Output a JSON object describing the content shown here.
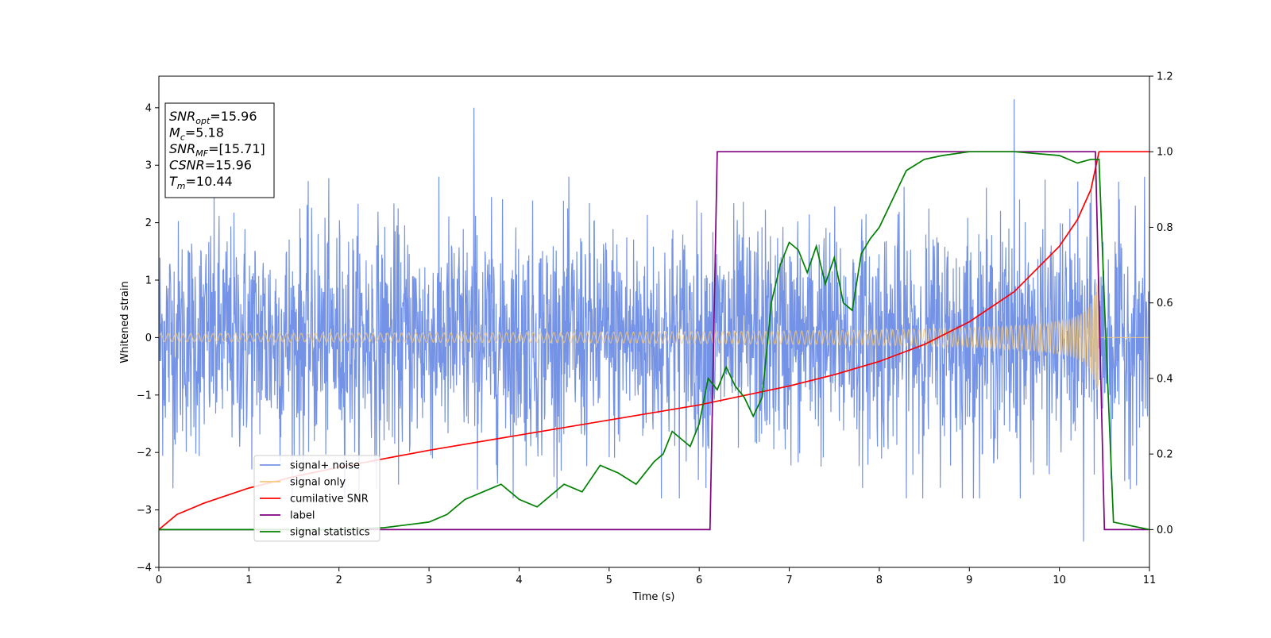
{
  "chart_data": {
    "type": "line",
    "title": "",
    "xlabel": "Time (s)",
    "ylabel": "Whitened strain",
    "xlim": [
      0,
      11
    ],
    "ylim": [
      -4,
      4.55
    ],
    "y2lim": [
      -0.1,
      1.2
    ],
    "x_ticks": [
      "0",
      "1",
      "2",
      "3",
      "4",
      "5",
      "6",
      "7",
      "8",
      "9",
      "10",
      "11"
    ],
    "y_ticks": [
      "−4",
      "−3",
      "−2",
      "−1",
      "0",
      "1",
      "2",
      "3",
      "4"
    ],
    "y2_ticks": [
      "0.0",
      "0.2",
      "0.4",
      "0.6",
      "0.8",
      "1.0",
      "1.2"
    ],
    "grid": false,
    "legend_position": "lower-left",
    "info_box": {
      "lines": [
        {
          "base": "SNR",
          "sub": "opt",
          "value": "=15.96"
        },
        {
          "base": "M",
          "sub": "c",
          "value": "=5.18"
        },
        {
          "base": "SNR",
          "sub": "MF",
          "value": "=[15.71]"
        },
        {
          "base": "CSNR",
          "sub": "",
          "value": "=15.96"
        },
        {
          "base": "T",
          "sub": "m",
          "value": "=10.44"
        }
      ]
    },
    "series": [
      {
        "name": "signal+ noise",
        "color": "#7593e6",
        "axis": "left",
        "kind": "noise",
        "amplitude_sigma": 1.0,
        "peaks": [
          4.0,
          4.15,
          -3.55
        ]
      },
      {
        "name": "signal only",
        "color": "#f5c97a",
        "axis": "left",
        "kind": "chirp",
        "merger_time": 10.44,
        "amplitude_start": 0.07,
        "amplitude_peak": 0.95
      },
      {
        "name": "cumilative SNR",
        "color": "#ff0000",
        "axis": "right",
        "x": [
          0,
          0.2,
          0.5,
          1,
          1.5,
          2,
          3,
          4,
          5,
          6,
          7,
          7.5,
          8,
          8.5,
          9,
          9.5,
          10,
          10.2,
          10.35,
          10.44,
          11
        ],
        "y": [
          0.0,
          0.04,
          0.07,
          0.11,
          0.14,
          0.165,
          0.21,
          0.25,
          0.29,
          0.33,
          0.38,
          0.41,
          0.445,
          0.49,
          0.55,
          0.63,
          0.75,
          0.82,
          0.9,
          1.0,
          1.0
        ]
      },
      {
        "name": "label",
        "color": "#800080",
        "axis": "right",
        "x": [
          0,
          6.12,
          6.2,
          10.4,
          10.5,
          11
        ],
        "y": [
          0,
          0,
          1,
          1,
          0,
          0
        ]
      },
      {
        "name": "signal statistics",
        "color": "#008000",
        "axis": "right",
        "x": [
          0,
          2.0,
          2.5,
          3.0,
          3.2,
          3.4,
          3.6,
          3.8,
          4.0,
          4.2,
          4.5,
          4.7,
          4.9,
          5.1,
          5.3,
          5.5,
          5.6,
          5.7,
          5.8,
          5.9,
          6.0,
          6.1,
          6.2,
          6.3,
          6.4,
          6.5,
          6.6,
          6.7,
          6.8,
          6.9,
          7.0,
          7.1,
          7.2,
          7.3,
          7.4,
          7.5,
          7.6,
          7.7,
          7.8,
          7.9,
          8.0,
          8.1,
          8.2,
          8.3,
          8.5,
          8.7,
          9.0,
          9.5,
          10.0,
          10.2,
          10.35,
          10.44,
          10.5,
          10.6,
          11
        ],
        "y": [
          0,
          0,
          0.005,
          0.02,
          0.04,
          0.08,
          0.1,
          0.12,
          0.08,
          0.06,
          0.12,
          0.1,
          0.17,
          0.15,
          0.12,
          0.18,
          0.2,
          0.26,
          0.24,
          0.22,
          0.28,
          0.4,
          0.37,
          0.43,
          0.38,
          0.35,
          0.3,
          0.35,
          0.6,
          0.7,
          0.76,
          0.74,
          0.68,
          0.75,
          0.65,
          0.72,
          0.6,
          0.58,
          0.73,
          0.77,
          0.8,
          0.85,
          0.9,
          0.95,
          0.98,
          0.99,
          1.0,
          1.0,
          0.99,
          0.97,
          0.98,
          0.98,
          0.6,
          0.02,
          0
        ]
      }
    ]
  }
}
